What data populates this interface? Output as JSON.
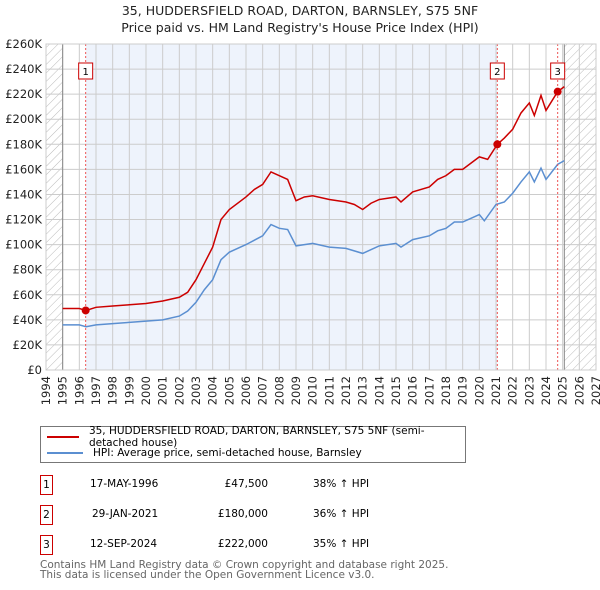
{
  "chart_data": {
    "type": "line",
    "title": "35, HUDDERSFIELD ROAD, DARTON, BARNSLEY, S75 5NF",
    "subtitle": "Price paid vs. HM Land Registry's House Price Index (HPI)",
    "xlim": [
      1994,
      2027
    ],
    "ylim": [
      0,
      260000
    ],
    "x_ticks": [
      "1994",
      "1995",
      "1996",
      "1997",
      "1998",
      "1999",
      "2000",
      "2001",
      "2002",
      "2003",
      "2004",
      "2005",
      "2006",
      "2007",
      "2008",
      "2009",
      "2010",
      "2011",
      "2012",
      "2013",
      "2014",
      "2015",
      "2016",
      "2017",
      "2018",
      "2019",
      "2020",
      "2021",
      "2022",
      "2023",
      "2024",
      "2025",
      "2026",
      "2027"
    ],
    "y_ticks": [
      "£0",
      "£20K",
      "£40K",
      "£60K",
      "£80K",
      "£100K",
      "£120K",
      "£140K",
      "£160K",
      "£180K",
      "£200K",
      "£220K",
      "£240K",
      "£260K"
    ],
    "grid": true,
    "series": [
      {
        "name": "35, HUDDERSFIELD ROAD, DARTON, BARNSLEY, S75 5NF (semi-detached house)",
        "color": "#cc0000",
        "x": [
          1995,
          1996,
          1996.4,
          1997,
          1998,
          1999,
          2000,
          2001,
          2002,
          2002.5,
          2003,
          2003.5,
          2004,
          2004.5,
          2005,
          2006,
          2006.5,
          2007,
          2007.5,
          2008,
          2008.5,
          2009,
          2009.5,
          2010,
          2011,
          2012,
          2012.5,
          2013,
          2013.5,
          2014,
          2015,
          2015.3,
          2016,
          2017,
          2017.5,
          2018,
          2018.5,
          2019,
          2019.5,
          2020,
          2020.5,
          2021.08,
          2021.5,
          2022,
          2022.5,
          2023,
          2023.3,
          2023.7,
          2024,
          2024.7,
          2025.1
        ],
        "y": [
          49000,
          49000,
          47500,
          50000,
          51000,
          52000,
          53000,
          55000,
          58000,
          62000,
          72000,
          85000,
          98000,
          120000,
          128000,
          138000,
          144000,
          148000,
          158000,
          155000,
          152000,
          135000,
          138000,
          139000,
          136000,
          134000,
          132000,
          128000,
          133000,
          136000,
          138000,
          134000,
          142000,
          146000,
          152000,
          155000,
          160000,
          160000,
          165000,
          170000,
          168000,
          180000,
          185000,
          192000,
          205000,
          213000,
          203000,
          219000,
          207000,
          222000,
          226000
        ]
      },
      {
        "name": "HPI: Average price, semi-detached house, Barnsley",
        "color": "#5b8fd1",
        "x": [
          1995,
          1996,
          1996.4,
          1997,
          1998,
          1999,
          2000,
          2001,
          2002,
          2002.5,
          2003,
          2003.5,
          2004,
          2004.5,
          2005,
          2006,
          2007,
          2007.5,
          2008,
          2008.5,
          2009,
          2010,
          2011,
          2012,
          2013,
          2014,
          2015,
          2015.3,
          2016,
          2017,
          2017.5,
          2018,
          2018.5,
          2019,
          2019.5,
          2020,
          2020.3,
          2021,
          2021.5,
          2022,
          2022.5,
          2023,
          2023.3,
          2023.7,
          2024,
          2024.7,
          2025.1
        ],
        "y": [
          36000,
          36000,
          34500,
          36000,
          37000,
          38000,
          39000,
          40000,
          43000,
          47000,
          54000,
          64000,
          72000,
          88000,
          94000,
          100000,
          107000,
          116000,
          113000,
          112000,
          99000,
          101000,
          98000,
          97000,
          93000,
          99000,
          101000,
          98000,
          104000,
          107000,
          111000,
          113000,
          118000,
          118000,
          121000,
          124000,
          119000,
          132000,
          134000,
          141000,
          150000,
          158000,
          150000,
          161000,
          152000,
          164000,
          167000
        ]
      }
    ],
    "sales": [
      {
        "label": "1",
        "x": 1996.38,
        "y": 47500,
        "date": "17-MAY-1996",
        "price": "£47,500",
        "hpi": "38% ↑ HPI"
      },
      {
        "label": "2",
        "x": 2021.08,
        "y": 180000,
        "date": "29-JAN-2021",
        "price": "£180,000",
        "hpi": "36% ↑ HPI"
      },
      {
        "label": "3",
        "x": 2024.7,
        "y": 222000,
        "date": "12-SEP-2024",
        "price": "£222,000",
        "hpi": "35% ↑ HPI"
      }
    ],
    "legend_placement": "bottom"
  },
  "footer": {
    "line1": "Contains HM Land Registry data © Crown copyright and database right 2025.",
    "line2": "This data is licensed under the Open Government Licence v3.0."
  }
}
